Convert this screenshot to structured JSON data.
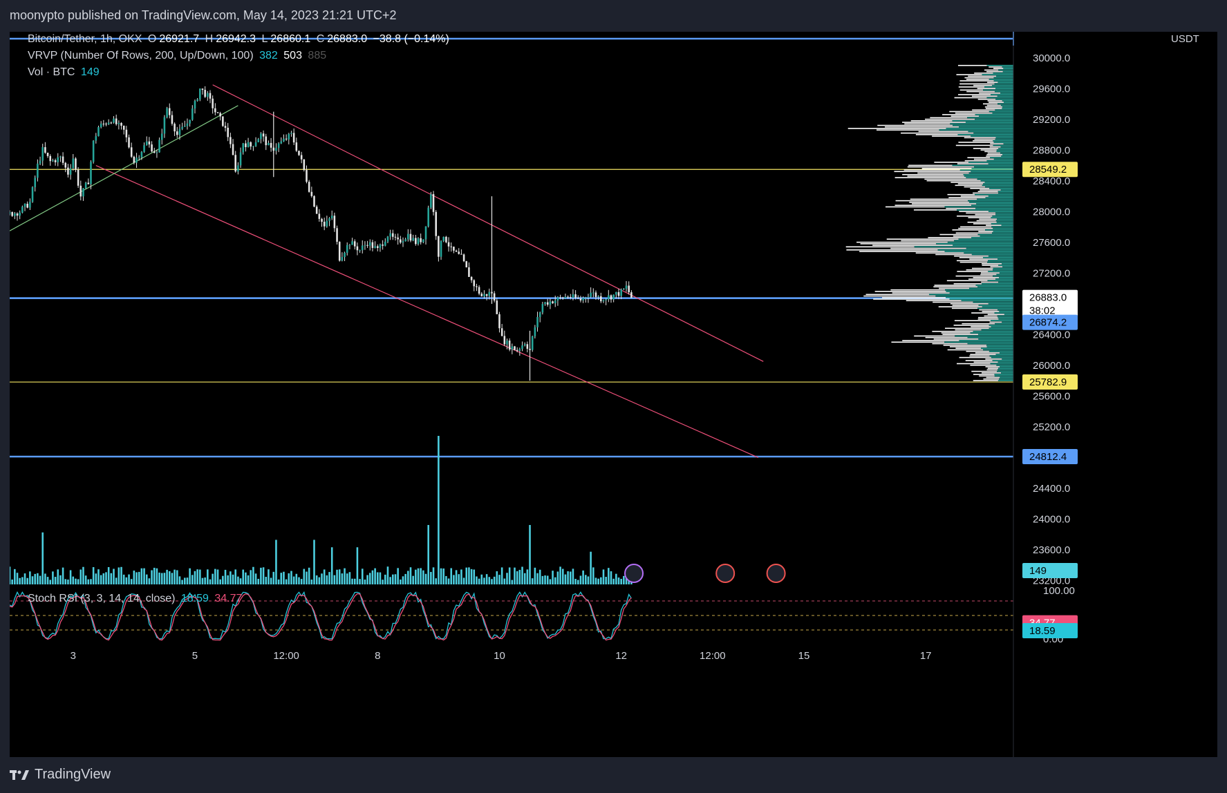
{
  "header": {
    "published": "moonypto published on TradingView.com, May 14, 2023 21:21 UTC+2"
  },
  "footer": {
    "brand": "TradingView"
  },
  "legend": {
    "symbol": "Bitcoin/Tether, 1h, OKX",
    "o_label": "O",
    "o": "26921.7",
    "h_label": "H",
    "h": "26942.3",
    "l_label": "L",
    "l": "26860.1",
    "c_label": "C",
    "c": "26883.0",
    "change": "−38.8 (−0.14%)",
    "vrvp": "VRVP (Number Of Rows, 200, Up/Down, 100)",
    "vrvp_up": "382",
    "vrvp_down": "503",
    "vrvp_total": "885",
    "vol": "Vol · BTC",
    "vol_value": "149",
    "stoch": "Stoch RSI (3, 3, 14, 14, close)",
    "stoch_k": "18.59",
    "stoch_d": "34.77"
  },
  "colors": {
    "background": "#000000",
    "candle": "#e6e6e6",
    "volume": "#4dd0e1",
    "horizontal_blue": "#5b9cf6",
    "horizontal_yellow": "#f5e663",
    "channel": "#f0507a",
    "trend_green": "#81c784",
    "vrvp_up": "#26a69a",
    "vrvp_down": "#ffffff"
  },
  "chart_data": {
    "type": "candlestick",
    "symbol": "Bitcoin/Tether",
    "timeframe": "1h",
    "exchange": "OKX",
    "currency": "USDT",
    "y_ticks": [
      "30000.0",
      "29600.0",
      "29200.0",
      "28800.0",
      "28400.0",
      "28000.0",
      "27600.0",
      "27200.0",
      "26800.0",
      "26400.0",
      "26000.0",
      "25600.0",
      "25200.0",
      "24800.0",
      "24400.0",
      "24000.0",
      "23600.0",
      "23200.0"
    ],
    "ylim": [
      23150,
      30250
    ],
    "x_ticks": [
      {
        "label": "3",
        "hour": 48
      },
      {
        "label": "5",
        "hour": 96
      },
      {
        "label": "12:00",
        "hour": 132
      },
      {
        "label": "8",
        "hour": 168
      },
      {
        "label": "10",
        "hour": 216
      },
      {
        "label": "12",
        "hour": 264
      },
      {
        "label": "12:00",
        "hour": 300
      },
      {
        "label": "15",
        "hour": 336
      },
      {
        "label": "17",
        "hour": 384
      }
    ],
    "xlim_hours": [
      23,
      418
    ],
    "price_path": [
      [
        23,
        27970
      ],
      [
        27,
        28000
      ],
      [
        31,
        28120
      ],
      [
        34,
        28600
      ],
      [
        36,
        28800
      ],
      [
        39,
        28650
      ],
      [
        43,
        28700
      ],
      [
        46,
        28500
      ],
      [
        48,
        28700
      ],
      [
        51,
        28200
      ],
      [
        54,
        28400
      ],
      [
        56,
        28900
      ],
      [
        58,
        29100
      ],
      [
        63,
        29200
      ],
      [
        68,
        29050
      ],
      [
        72,
        28650
      ],
      [
        77,
        28900
      ],
      [
        81,
        28750
      ],
      [
        85,
        29350
      ],
      [
        89,
        29000
      ],
      [
        93,
        29150
      ],
      [
        96,
        29400
      ],
      [
        98,
        29600
      ],
      [
        101,
        29500
      ],
      [
        104,
        29300
      ],
      [
        107,
        29150
      ],
      [
        110,
        28900
      ],
      [
        112,
        28500
      ],
      [
        115,
        28900
      ],
      [
        118,
        28850
      ],
      [
        122,
        29000
      ],
      [
        126,
        28800
      ],
      [
        130,
        28900
      ],
      [
        134,
        29000
      ],
      [
        138,
        28650
      ],
      [
        141,
        28300
      ],
      [
        144,
        28000
      ],
      [
        147,
        27800
      ],
      [
        150,
        27950
      ],
      [
        153,
        27400
      ],
      [
        157,
        27600
      ],
      [
        161,
        27500
      ],
      [
        164,
        27600
      ],
      [
        168,
        27500
      ],
      [
        172,
        27700
      ],
      [
        176,
        27600
      ],
      [
        180,
        27700
      ],
      [
        183,
        27600
      ],
      [
        186,
        27650
      ],
      [
        189,
        28250
      ],
      [
        192,
        27450
      ],
      [
        194,
        27700
      ],
      [
        197,
        27500
      ],
      [
        201,
        27400
      ],
      [
        205,
        27100
      ],
      [
        209,
        26900
      ],
      [
        213,
        26950
      ],
      [
        215,
        26700
      ],
      [
        217,
        26350
      ],
      [
        220,
        26250
      ],
      [
        223,
        26200
      ],
      [
        226,
        26300
      ],
      [
        228,
        26200
      ],
      [
        230,
        26500
      ],
      [
        233,
        26800
      ],
      [
        238,
        26850
      ],
      [
        243,
        26900
      ],
      [
        248,
        26850
      ],
      [
        252,
        26950
      ],
      [
        256,
        26870
      ],
      [
        260,
        26900
      ],
      [
        264,
        26950
      ],
      [
        266,
        27020
      ],
      [
        268,
        26883
      ]
    ],
    "wicks": [
      {
        "hour": 213,
        "low": 26800,
        "high": 28200
      },
      {
        "hour": 228,
        "low": 25800,
        "high": 26450
      },
      {
        "hour": 127,
        "low": 28450,
        "high": 29300
      }
    ],
    "horizontal_levels": [
      {
        "price": 30300,
        "color": "blue"
      },
      {
        "price": 28549.2,
        "color": "yellow",
        "label": "28549.2"
      },
      {
        "price": 26874.2,
        "color": "blue",
        "label": "26874.2"
      },
      {
        "price": 25782.9,
        "color": "yellow",
        "label": "25782.9"
      },
      {
        "price": 24812.4,
        "color": "blue",
        "label": "24812.4"
      }
    ],
    "last_price": {
      "label": "26883.0",
      "countdown": "38:02"
    },
    "channel_upper": [
      [
        103,
        29650
      ],
      [
        320,
        26050
      ]
    ],
    "channel_lower": [
      [
        57,
        28600
      ],
      [
        318,
        24800
      ]
    ],
    "trend_green": [
      [
        23,
        27750
      ],
      [
        113,
        29380
      ]
    ],
    "volume": {
      "label": "149",
      "spike_hours": [
        [
          192,
          1.0
        ],
        [
          188,
          0.4
        ],
        [
          228,
          0.4
        ],
        [
          36,
          0.35
        ],
        [
          128,
          0.3
        ],
        [
          143,
          0.3
        ],
        [
          150,
          0.25
        ],
        [
          160,
          0.25
        ],
        [
          252,
          0.22
        ]
      ]
    },
    "stoch_rsi": {
      "ylim": [
        0,
        100
      ],
      "ticks": [
        "100.00",
        "0.00"
      ],
      "bands": [
        80,
        50,
        20
      ],
      "k_label": "18.59",
      "d_label": "34.77",
      "k_value": 18.59,
      "d_value": 34.77
    },
    "vrvp": {
      "up": "382",
      "down": "503",
      "total": "885"
    }
  }
}
